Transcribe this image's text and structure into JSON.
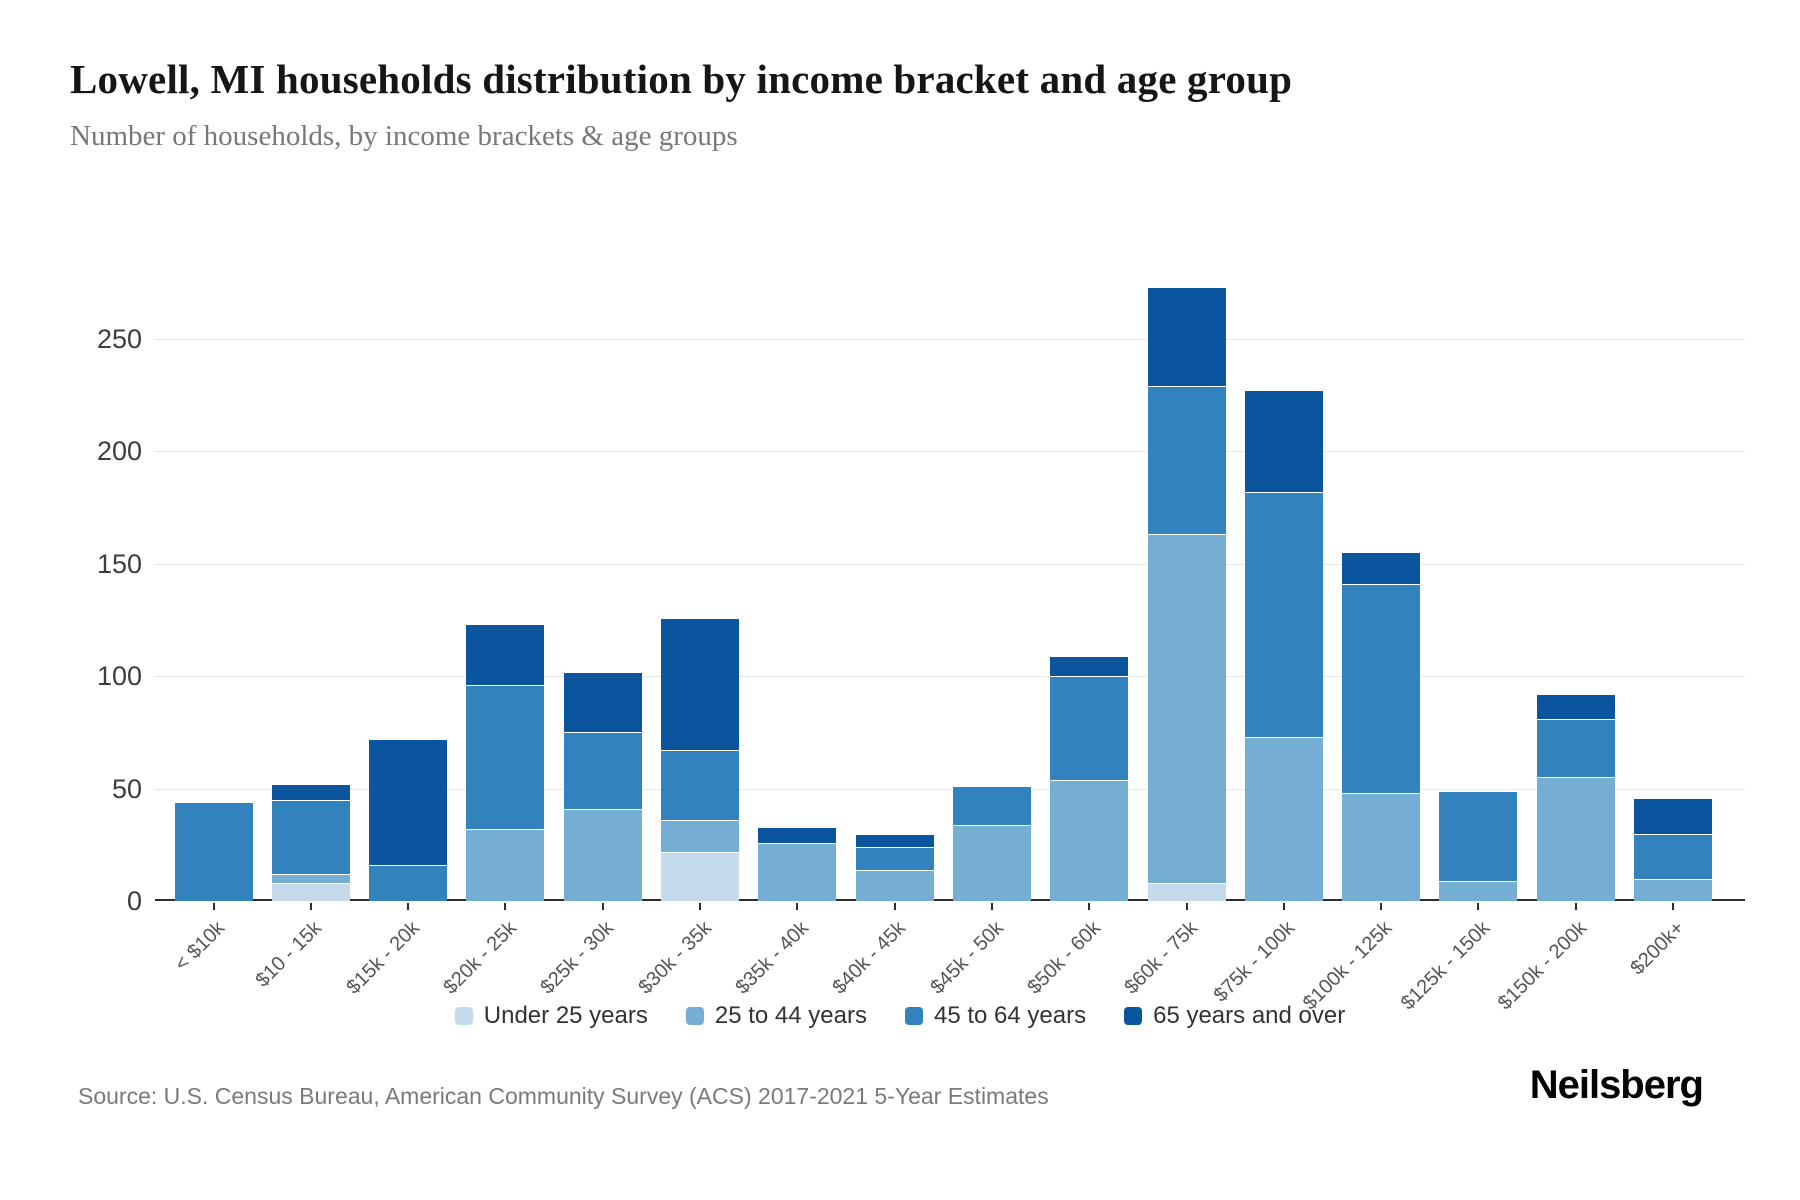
{
  "header": {
    "title": "Lowell, MI households distribution by income bracket and age group",
    "subtitle": "Number of households, by income brackets & age groups"
  },
  "footer": {
    "source": "Source: U.S. Census Bureau, American Community Survey (ACS) 2017-2021 5-Year Estimates",
    "brand": "Neilsberg"
  },
  "chart_data": {
    "type": "bar",
    "stacked": true,
    "title": "Lowell, MI households distribution by income bracket and age group",
    "xlabel": "",
    "ylabel": "Number of households",
    "ylim": [
      0,
      250
    ],
    "yticks": [
      0,
      50,
      100,
      150,
      200,
      250
    ],
    "grid": true,
    "legend_position": "bottom",
    "categories": [
      "< $10k",
      "$10 - 15k",
      "$15k - 20k",
      "$20k - 25k",
      "$25k - 30k",
      "$30k - 35k",
      "$35k - 40k",
      "$40k - 45k",
      "$45k - 50k",
      "$50k - 60k",
      "$60k - 75k",
      "$75k - 100k",
      "$100k - 125k",
      "$125k - 150k",
      "$150k - 200k",
      "$200k+"
    ],
    "series": [
      {
        "name": "Under 25 years",
        "color": "#c5dbec",
        "values": [
          0,
          8,
          0,
          0,
          0,
          22,
          0,
          0,
          0,
          0,
          8,
          0,
          0,
          0,
          0,
          0
        ]
      },
      {
        "name": "25 to 44 years",
        "color": "#74afd3",
        "values": [
          0,
          4,
          0,
          32,
          41,
          14,
          26,
          14,
          34,
          54,
          155,
          73,
          48,
          9,
          55,
          10
        ]
      },
      {
        "name": "45 to 64 years",
        "color": "#3182bd",
        "values": [
          44,
          33,
          16,
          64,
          34,
          31,
          0,
          10,
          17,
          46,
          66,
          109,
          93,
          40,
          26,
          20
        ]
      },
      {
        "name": "65 years and over",
        "color": "#0b559f",
        "values": [
          0,
          7,
          56,
          27,
          27,
          59,
          7,
          6,
          0,
          9,
          44,
          45,
          14,
          0,
          11,
          16
        ]
      }
    ],
    "totals": [
      44,
      52,
      72,
      123,
      102,
      126,
      33,
      30,
      51,
      109,
      273,
      227,
      155,
      49,
      92,
      46
    ]
  },
  "legend": {
    "items": [
      {
        "label": "Under 25 years",
        "color": "#c5dbec"
      },
      {
        "label": "25 to 44 years",
        "color": "#74afd3"
      },
      {
        "label": "45 to 64 years",
        "color": "#3182bd"
      },
      {
        "label": "65 years and over",
        "color": "#0b559f"
      }
    ]
  },
  "style": {
    "axis_color": "#2d2d2d",
    "gridline_color": "#e9e9e9",
    "background": "#ffffff"
  }
}
